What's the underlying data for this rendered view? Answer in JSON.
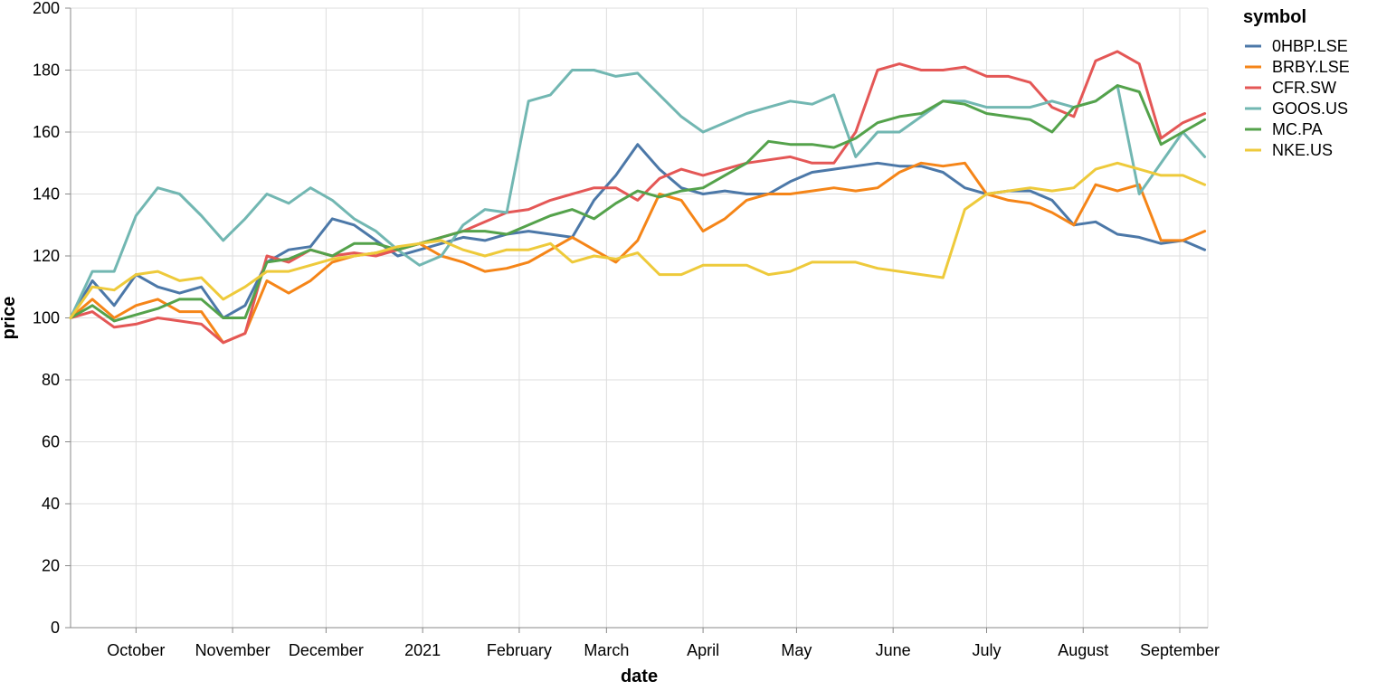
{
  "chart_data": {
    "type": "line",
    "title": "",
    "xlabel": "date",
    "ylabel": "price",
    "ylim": [
      0,
      200
    ],
    "xlim": [
      "2020-09-10",
      "2021-09-10"
    ],
    "grid": true,
    "legend_title": "symbol",
    "legend_placement": "right",
    "y_ticks": [
      0,
      20,
      40,
      60,
      80,
      100,
      120,
      140,
      160,
      180,
      200
    ],
    "x_ticks": [
      {
        "date": "2020-10-01",
        "label": "October"
      },
      {
        "date": "2020-11-01",
        "label": "November"
      },
      {
        "date": "2020-12-01",
        "label": "December"
      },
      {
        "date": "2021-01-01",
        "label": "2021"
      },
      {
        "date": "2021-02-01",
        "label": "February"
      },
      {
        "date": "2021-03-01",
        "label": "March"
      },
      {
        "date": "2021-04-01",
        "label": "April"
      },
      {
        "date": "2021-05-01",
        "label": "May"
      },
      {
        "date": "2021-06-01",
        "label": "June"
      },
      {
        "date": "2021-07-01",
        "label": "July"
      },
      {
        "date": "2021-08-01",
        "label": "August"
      },
      {
        "date": "2021-09-01",
        "label": "September"
      }
    ],
    "x": [
      "2020-09-10",
      "2020-09-17",
      "2020-09-24",
      "2020-10-01",
      "2020-10-08",
      "2020-10-15",
      "2020-10-22",
      "2020-10-29",
      "2020-11-05",
      "2020-11-12",
      "2020-11-19",
      "2020-11-26",
      "2020-12-03",
      "2020-12-10",
      "2020-12-17",
      "2020-12-24",
      "2020-12-31",
      "2021-01-07",
      "2021-01-14",
      "2021-01-21",
      "2021-01-28",
      "2021-02-04",
      "2021-02-11",
      "2021-02-18",
      "2021-02-25",
      "2021-03-04",
      "2021-03-11",
      "2021-03-18",
      "2021-03-25",
      "2021-04-01",
      "2021-04-08",
      "2021-04-15",
      "2021-04-22",
      "2021-04-29",
      "2021-05-06",
      "2021-05-13",
      "2021-05-20",
      "2021-05-27",
      "2021-06-03",
      "2021-06-10",
      "2021-06-17",
      "2021-06-24",
      "2021-07-01",
      "2021-07-08",
      "2021-07-15",
      "2021-07-22",
      "2021-07-29",
      "2021-08-05",
      "2021-08-12",
      "2021-08-19",
      "2021-08-26",
      "2021-09-02",
      "2021-09-09"
    ],
    "series": [
      {
        "name": "0HBP.LSE",
        "color": "#4c78a8",
        "values": [
          100,
          112,
          104,
          114,
          110,
          108,
          110,
          100,
          104,
          118,
          122,
          123,
          132,
          130,
          125,
          120,
          122,
          124,
          126,
          125,
          127,
          128,
          127,
          126,
          138,
          146,
          156,
          148,
          142,
          140,
          141,
          140,
          140,
          144,
          147,
          148,
          149,
          150,
          149,
          149,
          147,
          142,
          140,
          141,
          141,
          138,
          130,
          131,
          127,
          126,
          124,
          125,
          122
        ]
      },
      {
        "name": "BRBY.LSE",
        "color": "#f58518",
        "values": [
          100,
          106,
          100,
          104,
          106,
          102,
          102,
          92,
          95,
          112,
          108,
          112,
          118,
          120,
          121,
          122,
          124,
          120,
          118,
          115,
          116,
          118,
          122,
          126,
          122,
          118,
          125,
          140,
          138,
          128,
          132,
          138,
          140,
          140,
          141,
          142,
          141,
          142,
          147,
          150,
          149,
          150,
          140,
          138,
          137,
          134,
          130,
          143,
          141,
          143,
          125,
          125,
          128
        ]
      },
      {
        "name": "CFR.SW",
        "color": "#e45756",
        "values": [
          100,
          102,
          97,
          98,
          100,
          99,
          98,
          92,
          95,
          120,
          118,
          122,
          120,
          121,
          120,
          122,
          124,
          126,
          128,
          131,
          134,
          135,
          138,
          140,
          142,
          142,
          138,
          145,
          148,
          146,
          148,
          150,
          151,
          152,
          150,
          150,
          160,
          180,
          182,
          180,
          180,
          181,
          178,
          178,
          176,
          168,
          165,
          183,
          186,
          182,
          158,
          163,
          166
        ]
      },
      {
        "name": "GOOS.US",
        "color": "#72b7b2",
        "values": [
          100,
          115,
          115,
          133,
          142,
          140,
          133,
          125,
          132,
          140,
          137,
          142,
          138,
          132,
          128,
          122,
          117,
          120,
          130,
          135,
          134,
          170,
          172,
          180,
          180,
          178,
          179,
          172,
          165,
          160,
          163,
          166,
          168,
          170,
          169,
          172,
          152,
          160,
          160,
          165,
          170,
          170,
          168,
          168,
          168,
          170,
          168,
          170,
          175,
          140,
          150,
          160,
          152
        ]
      },
      {
        "name": "MC.PA",
        "color": "#54a24b",
        "values": [
          100,
          104,
          99,
          101,
          103,
          106,
          106,
          100,
          100,
          118,
          119,
          122,
          120,
          124,
          124,
          122,
          124,
          126,
          128,
          128,
          127,
          130,
          133,
          135,
          132,
          137,
          141,
          139,
          141,
          142,
          146,
          150,
          157,
          156,
          156,
          155,
          158,
          163,
          165,
          166,
          170,
          169,
          166,
          165,
          164,
          160,
          168,
          170,
          175,
          173,
          156,
          160,
          164
        ]
      },
      {
        "name": "NKE.US",
        "color": "#eeca3b",
        "values": [
          100,
          110,
          109,
          114,
          115,
          112,
          113,
          106,
          110,
          115,
          115,
          117,
          119,
          120,
          121,
          123,
          124,
          125,
          122,
          120,
          122,
          122,
          124,
          118,
          120,
          119,
          121,
          114,
          114,
          117,
          117,
          117,
          114,
          115,
          118,
          118,
          118,
          116,
          115,
          114,
          113,
          135,
          140,
          141,
          142,
          141,
          142,
          148,
          150,
          148,
          146,
          146,
          143
        ]
      }
    ]
  }
}
